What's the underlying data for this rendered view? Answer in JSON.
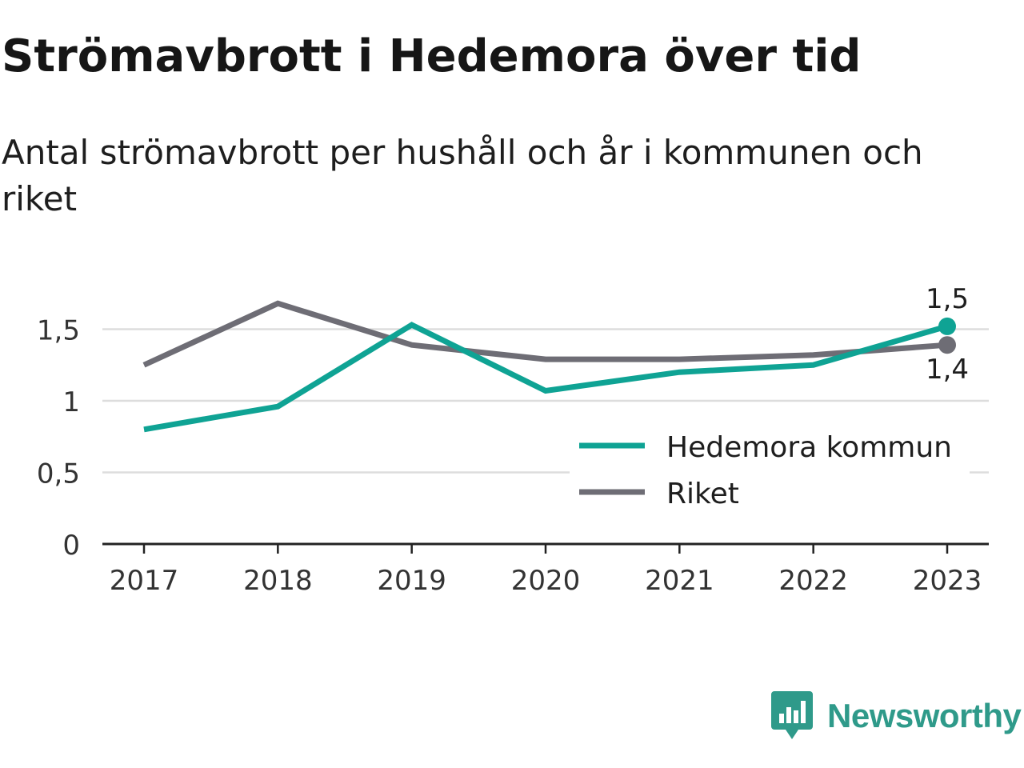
{
  "title": "Strömavbrott i Hedemora över tid",
  "subtitle": "Antal strömavbrott per hushåll och år i kommunen och riket",
  "brand": {
    "name": "Newsworthy",
    "icon": "newsworthy-logo-icon"
  },
  "colors": {
    "kommun": "#0fa394",
    "riket": "#6e6d75",
    "grid": "#dddddd",
    "axis": "#222222"
  },
  "chart_data": {
    "type": "line",
    "x": [
      "2017",
      "2018",
      "2019",
      "2020",
      "2021",
      "2022",
      "2023"
    ],
    "ylim": [
      0,
      1.7
    ],
    "yticks": [
      {
        "value": 0,
        "label": "0"
      },
      {
        "value": 0.5,
        "label": "0,5"
      },
      {
        "value": 1,
        "label": "1"
      },
      {
        "value": 1.5,
        "label": "1,5"
      }
    ],
    "grid": true,
    "legend_position": "bottom-right",
    "series": [
      {
        "name": "Hedemora kommun",
        "color": "#0fa394",
        "values": [
          0.8,
          0.96,
          1.53,
          1.07,
          1.2,
          1.25,
          1.52
        ],
        "end_label": "1,5"
      },
      {
        "name": "Riket",
        "color": "#6e6d75",
        "values": [
          1.25,
          1.68,
          1.39,
          1.29,
          1.29,
          1.32,
          1.39
        ],
        "end_label": "1,4"
      }
    ]
  }
}
